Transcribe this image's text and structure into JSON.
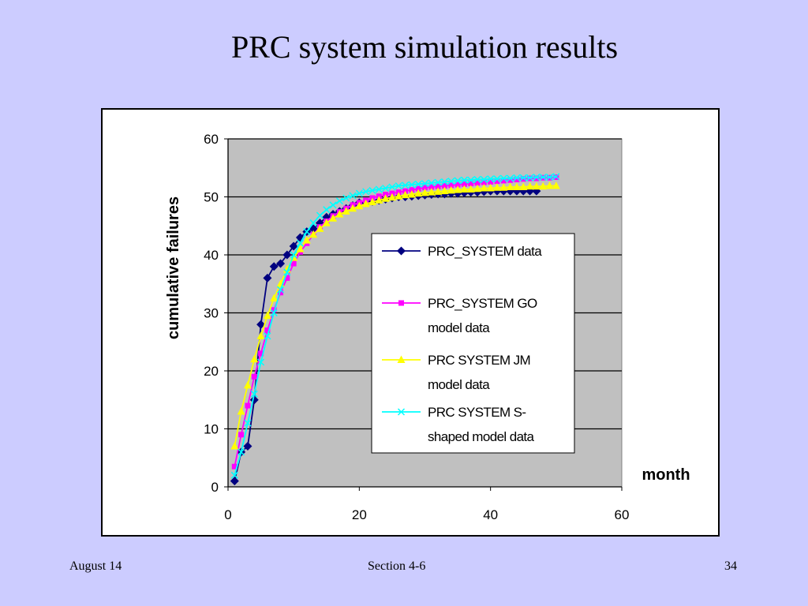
{
  "slide": {
    "title": "PRC system simulation results",
    "footer_left": "August 14",
    "footer_center": "Section 4-6",
    "footer_right": "34"
  },
  "chart_data": {
    "type": "line",
    "title": "",
    "xlabel": "month",
    "ylabel": "cumulative failures",
    "xlim": [
      0,
      60
    ],
    "ylim": [
      0,
      60
    ],
    "x_ticks": [
      0,
      20,
      40,
      60
    ],
    "y_ticks": [
      0,
      10,
      20,
      30,
      40,
      50,
      60
    ],
    "grid": "horizontal",
    "plot_background": "#C0C0C0",
    "legend_position": "center-right",
    "series": [
      {
        "name": "PRC_SYSTEM data",
        "legend_lines": [
          "PRC_SYSTEM data"
        ],
        "color": "#000080",
        "marker": "diamond",
        "x": [
          1,
          2,
          3,
          4,
          5,
          6,
          7,
          8,
          9,
          10,
          11,
          12,
          13,
          14,
          15,
          16,
          17,
          18,
          19,
          20,
          21,
          22,
          23,
          24,
          25,
          26,
          27,
          28,
          29,
          30,
          31,
          32,
          33,
          34,
          35,
          36,
          37,
          38,
          39,
          40,
          41,
          42,
          43,
          44,
          45,
          46,
          47
        ],
        "y": [
          1,
          6,
          7,
          15,
          28,
          36,
          38,
          38.5,
          40,
          41.5,
          43,
          44,
          44.5,
          45.5,
          46.5,
          47,
          47.5,
          48,
          48.5,
          49,
          49,
          49.2,
          49.4,
          49.6,
          49.8,
          50,
          50,
          50.1,
          50.2,
          50.3,
          50.4,
          50.5,
          50.5,
          50.6,
          50.6,
          50.7,
          50.8,
          50.8,
          50.9,
          51,
          51,
          51,
          51,
          51,
          51,
          51,
          51
        ]
      },
      {
        "name": "PRC_SYSTEM GO model data",
        "legend_lines": [
          "PRC_SYSTEM GO",
          "model data"
        ],
        "color": "#FF00FF",
        "marker": "square",
        "x": [
          1,
          2,
          3,
          4,
          5,
          6,
          7,
          8,
          9,
          10,
          11,
          12,
          13,
          14,
          15,
          16,
          17,
          18,
          19,
          20,
          21,
          22,
          23,
          24,
          25,
          26,
          27,
          28,
          29,
          30,
          31,
          32,
          33,
          34,
          35,
          36,
          37,
          38,
          39,
          40,
          41,
          42,
          43,
          44,
          45,
          46,
          47,
          48,
          49,
          50
        ],
        "y": [
          3.5,
          9,
          14,
          19,
          23,
          27,
          30.5,
          33.5,
          36,
          38.5,
          40.5,
          42,
          43.5,
          44.8,
          45.8,
          46.7,
          47.4,
          48,
          48.6,
          49,
          49.4,
          49.8,
          50.1,
          50.4,
          50.6,
          50.8,
          51,
          51.2,
          51.4,
          51.6,
          51.7,
          51.8,
          51.9,
          52,
          52.1,
          52.2,
          52.3,
          52.4,
          52.5,
          52.6,
          52.7,
          52.8,
          52.9,
          53,
          53.1,
          53.2,
          53.2,
          53.3,
          53.3,
          53.4
        ]
      },
      {
        "name": "PRC SYSTEM JM model data",
        "legend_lines": [
          "PRC SYSTEM JM",
          "model data"
        ],
        "color": "#FFFF00",
        "marker": "triangle",
        "x": [
          1,
          2,
          3,
          4,
          5,
          6,
          7,
          8,
          9,
          10,
          11,
          12,
          13,
          14,
          15,
          16,
          17,
          18,
          19,
          20,
          21,
          22,
          23,
          24,
          25,
          26,
          27,
          28,
          29,
          30,
          31,
          32,
          33,
          34,
          35,
          36,
          37,
          38,
          39,
          40,
          41,
          42,
          43,
          44,
          45,
          46,
          47,
          48,
          49,
          50
        ],
        "y": [
          7,
          13,
          17.5,
          22,
          26,
          29.5,
          32.5,
          35,
          37.5,
          39.5,
          41,
          42.5,
          43.5,
          44.5,
          45.5,
          46.3,
          47,
          47.5,
          48,
          48.4,
          48.8,
          49.1,
          49.4,
          49.7,
          49.9,
          50.1,
          50.3,
          50.4,
          50.6,
          50.7,
          50.8,
          50.9,
          51,
          51.1,
          51.2,
          51.3,
          51.3,
          51.4,
          51.5,
          51.5,
          51.6,
          51.6,
          51.7,
          51.7,
          51.7,
          51.8,
          51.8,
          51.8,
          51.9,
          51.9
        ]
      },
      {
        "name": "PRC SYSTEM S-shaped model data",
        "legend_lines": [
          "PRC SYSTEM S-",
          "shaped model data"
        ],
        "color": "#00FFFF",
        "marker": "x",
        "x": [
          1,
          2,
          3,
          4,
          5,
          6,
          7,
          8,
          9,
          10,
          11,
          12,
          13,
          14,
          15,
          16,
          17,
          18,
          19,
          20,
          21,
          22,
          23,
          24,
          25,
          26,
          27,
          28,
          29,
          30,
          31,
          32,
          33,
          34,
          35,
          36,
          37,
          38,
          39,
          40,
          41,
          42,
          43,
          44,
          45,
          46,
          47,
          48,
          49,
          50
        ],
        "y": [
          2,
          6,
          11,
          16,
          21.5,
          26,
          30,
          34,
          37,
          40,
          42,
          44,
          45.5,
          46.8,
          47.8,
          48.6,
          49.3,
          49.8,
          50.2,
          50.6,
          50.9,
          51.1,
          51.3,
          51.5,
          51.7,
          51.9,
          52,
          52.1,
          52.2,
          52.3,
          52.4,
          52.5,
          52.6,
          52.7,
          52.8,
          52.9,
          52.9,
          53,
          53,
          53.1,
          53.1,
          53.2,
          53.2,
          53.3,
          53.3,
          53.3,
          53.4,
          53.4,
          53.4,
          53.5
        ]
      }
    ]
  }
}
